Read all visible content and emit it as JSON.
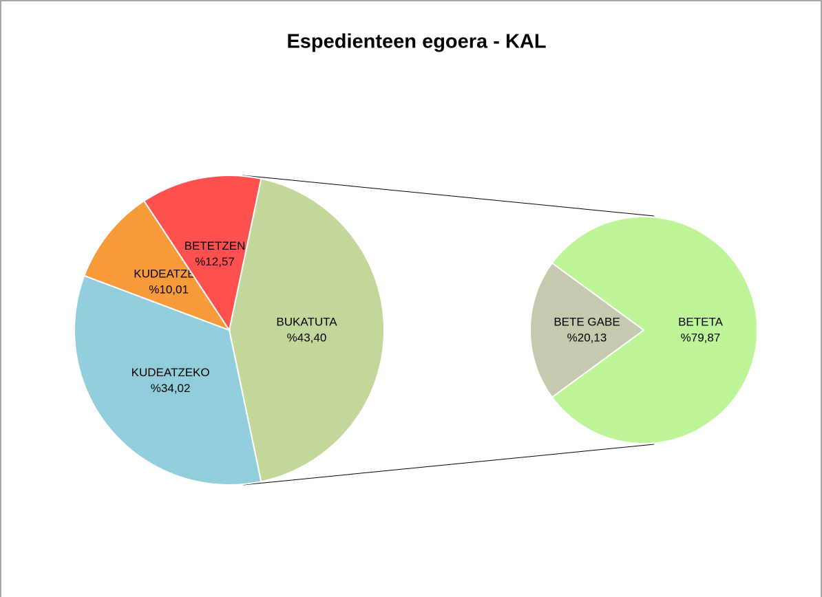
{
  "chart_data": {
    "type": "pie",
    "title": "Espedienteen egoera - KAL",
    "categories": [
      "BUKATUTA",
      "KUDEATZEKO",
      "KUDEATZEN",
      "BETETZEN"
    ],
    "values": [
      43.4,
      34.02,
      10.01,
      12.57
    ],
    "value_labels": [
      "%43,40",
      "%34,02",
      "%10,01",
      "%12,57"
    ],
    "colors": [
      "#c4d79b",
      "#92cddc",
      "#f79a3a",
      "#ff5050"
    ],
    "breakout": {
      "categories": [
        "BETETA",
        "BETE GABE"
      ],
      "values": [
        79.87,
        20.13
      ],
      "value_labels": [
        "%79,87",
        "%20,13"
      ],
      "colors": [
        "#bef598",
        "#c5c9ae"
      ]
    }
  }
}
